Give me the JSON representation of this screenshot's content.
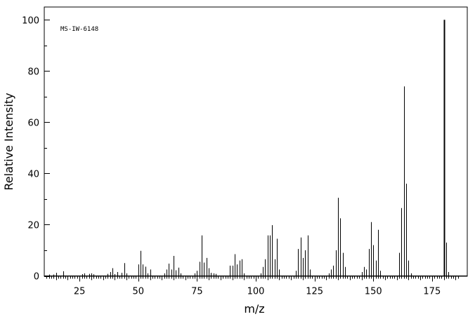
{
  "chart_data": {
    "type": "bar",
    "annotation": "MS-IW-6148",
    "xlabel": "m/z",
    "ylabel": "Relative Intensity",
    "xlim": [
      10,
      190
    ],
    "ylim": [
      0,
      105
    ],
    "xticks": [
      25,
      50,
      75,
      100,
      125,
      150,
      175
    ],
    "yticks": [
      0,
      20,
      40,
      60,
      80,
      100
    ],
    "grid": false,
    "legend": "none",
    "peaks": [
      {
        "mz": 12,
        "intensity": 0.5
      },
      {
        "mz": 14,
        "intensity": 0.5
      },
      {
        "mz": 15,
        "intensity": 1.2
      },
      {
        "mz": 18,
        "intensity": 1.8
      },
      {
        "mz": 26,
        "intensity": 0.7
      },
      {
        "mz": 27,
        "intensity": 1.0
      },
      {
        "mz": 29,
        "intensity": 0.8
      },
      {
        "mz": 30,
        "intensity": 1.0
      },
      {
        "mz": 31,
        "intensity": 0.6
      },
      {
        "mz": 37,
        "intensity": 0.8
      },
      {
        "mz": 38,
        "intensity": 1.5
      },
      {
        "mz": 39,
        "intensity": 3.0
      },
      {
        "mz": 40,
        "intensity": 0.7
      },
      {
        "mz": 41,
        "intensity": 1.5
      },
      {
        "mz": 43,
        "intensity": 1.2
      },
      {
        "mz": 44,
        "intensity": 5.0
      },
      {
        "mz": 45,
        "intensity": 1.0
      },
      {
        "mz": 50,
        "intensity": 4.5
      },
      {
        "mz": 51,
        "intensity": 9.8
      },
      {
        "mz": 52,
        "intensity": 4.5
      },
      {
        "mz": 53,
        "intensity": 3.6
      },
      {
        "mz": 54,
        "intensity": 1.0
      },
      {
        "mz": 55,
        "intensity": 2.5
      },
      {
        "mz": 61,
        "intensity": 1.0
      },
      {
        "mz": 62,
        "intensity": 2.5
      },
      {
        "mz": 63,
        "intensity": 4.8
      },
      {
        "mz": 64,
        "intensity": 2.5
      },
      {
        "mz": 65,
        "intensity": 7.8
      },
      {
        "mz": 66,
        "intensity": 2.2
      },
      {
        "mz": 67,
        "intensity": 3.2
      },
      {
        "mz": 68,
        "intensity": 1.0
      },
      {
        "mz": 74,
        "intensity": 1.0
      },
      {
        "mz": 75,
        "intensity": 2.0
      },
      {
        "mz": 76,
        "intensity": 5.5
      },
      {
        "mz": 77,
        "intensity": 15.8
      },
      {
        "mz": 78,
        "intensity": 5.2
      },
      {
        "mz": 79,
        "intensity": 7.0
      },
      {
        "mz": 80,
        "intensity": 3.0
      },
      {
        "mz": 81,
        "intensity": 1.2
      },
      {
        "mz": 82,
        "intensity": 1.0
      },
      {
        "mz": 83,
        "intensity": 0.8
      },
      {
        "mz": 89,
        "intensity": 4.0
      },
      {
        "mz": 90,
        "intensity": 4.0
      },
      {
        "mz": 91,
        "intensity": 8.5
      },
      {
        "mz": 92,
        "intensity": 4.5
      },
      {
        "mz": 93,
        "intensity": 6.0
      },
      {
        "mz": 94,
        "intensity": 6.5
      },
      {
        "mz": 95,
        "intensity": 1.0
      },
      {
        "mz": 102,
        "intensity": 1.0
      },
      {
        "mz": 103,
        "intensity": 3.5
      },
      {
        "mz": 104,
        "intensity": 6.5
      },
      {
        "mz": 105,
        "intensity": 15.8
      },
      {
        "mz": 106,
        "intensity": 15.8
      },
      {
        "mz": 107,
        "intensity": 19.8
      },
      {
        "mz": 108,
        "intensity": 6.5
      },
      {
        "mz": 109,
        "intensity": 14.5
      },
      {
        "mz": 110,
        "intensity": 2.5
      },
      {
        "mz": 117,
        "intensity": 2.0
      },
      {
        "mz": 118,
        "intensity": 10.5
      },
      {
        "mz": 119,
        "intensity": 15.0
      },
      {
        "mz": 120,
        "intensity": 7.0
      },
      {
        "mz": 121,
        "intensity": 10.0
      },
      {
        "mz": 122,
        "intensity": 15.8
      },
      {
        "mz": 123,
        "intensity": 2.5
      },
      {
        "mz": 131,
        "intensity": 1.0
      },
      {
        "mz": 132,
        "intensity": 2.5
      },
      {
        "mz": 133,
        "intensity": 4.0
      },
      {
        "mz": 134,
        "intensity": 10.0
      },
      {
        "mz": 135,
        "intensity": 30.5
      },
      {
        "mz": 136,
        "intensity": 22.5
      },
      {
        "mz": 137,
        "intensity": 9.0
      },
      {
        "mz": 138,
        "intensity": 3.5
      },
      {
        "mz": 145,
        "intensity": 1.5
      },
      {
        "mz": 146,
        "intensity": 3.5
      },
      {
        "mz": 147,
        "intensity": 2.5
      },
      {
        "mz": 148,
        "intensity": 10.5
      },
      {
        "mz": 149,
        "intensity": 21.0
      },
      {
        "mz": 150,
        "intensity": 12.0
      },
      {
        "mz": 151,
        "intensity": 6.0
      },
      {
        "mz": 152,
        "intensity": 18.0
      },
      {
        "mz": 153,
        "intensity": 2.0
      },
      {
        "mz": 161,
        "intensity": 9.0
      },
      {
        "mz": 162,
        "intensity": 26.5
      },
      {
        "mz": 163,
        "intensity": 74.0
      },
      {
        "mz": 164,
        "intensity": 36.0
      },
      {
        "mz": 165,
        "intensity": 6.0
      },
      {
        "mz": 166,
        "intensity": 1.0
      },
      {
        "mz": 180,
        "intensity": 100.0
      },
      {
        "mz": 181,
        "intensity": 13.0
      },
      {
        "mz": 182,
        "intensity": 1.5
      }
    ]
  }
}
